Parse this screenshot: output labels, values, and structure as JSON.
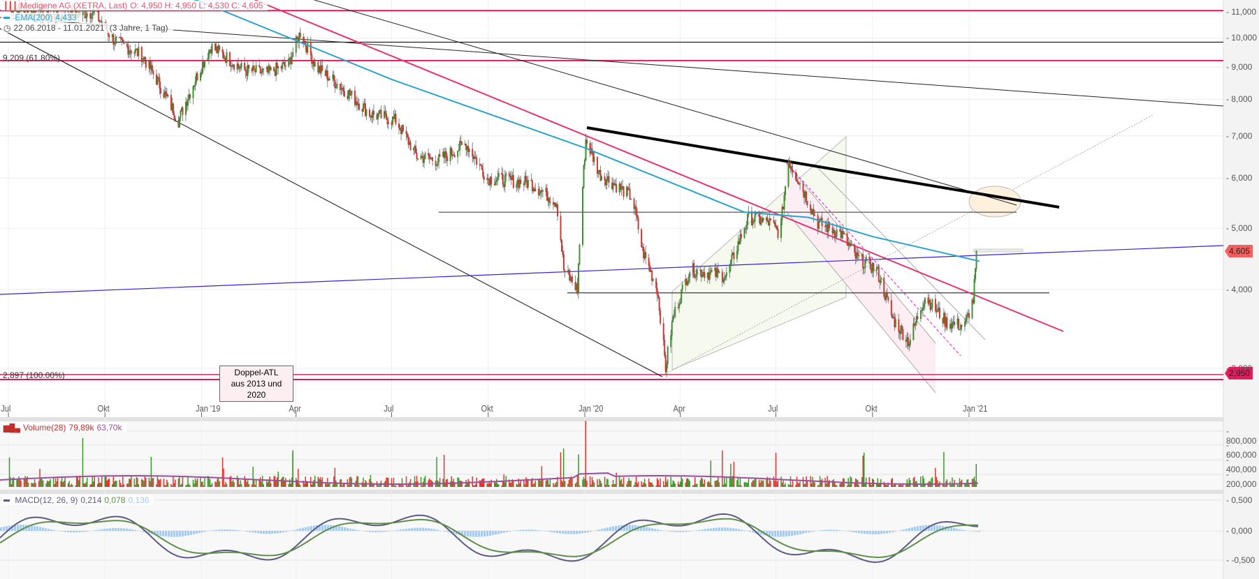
{
  "header": {
    "instrument": "Medigene AG (XETRA, Last)",
    "ohlc": {
      "O": "4,950",
      "H": "4,950",
      "L": "4,530",
      "C": "4,605"
    },
    "ohlc_text": "O: 4,950  H: 4,950  L: 4,530  C: 4,605",
    "ema_label": "EMA(200)",
    "ema_value": "4,433",
    "period": "22.06.2018 - 11.01.2021",
    "period_detail": "(3 Jahre, 1 Tag)"
  },
  "volume_legend": {
    "label": "Volume(28)",
    "value1": "79,89k",
    "value2": "63,70k"
  },
  "macd_legend": {
    "label": "MACD(12, 26, 9)",
    "macd": "0,214",
    "signal": "0,078",
    "hist": "0,136"
  },
  "fib_labels": [
    {
      "text": "9,209 (61.80%)",
      "price": 9209
    },
    {
      "text": "2,897 (100.00%)",
      "price": 2897
    }
  ],
  "annotation": {
    "line1": "Doppel-ATL",
    "line2": "aus 2013 und 2020"
  },
  "badges": {
    "last_price": "4,605",
    "support": "2,950"
  },
  "colors": {
    "up": "#3a9a28",
    "down": "#e8332e",
    "ema": "#2aa3cc",
    "fib": "#e0195f",
    "trend_pink": "#e8336f",
    "blue_line": "#3a1fd6",
    "vol_ma": "#9b4f9b",
    "macd": "#5c5a85",
    "signal": "#5e8f4a",
    "hist": "#a9c8ea",
    "last_badge": "#f26060",
    "support_badge": "#e8195f"
  },
  "chart_data": {
    "type": "candlestick",
    "title": "Medigene AG (XETRA, Last)",
    "range": "22.06.2018 - 11.01.2021",
    "interval": "1 Tag",
    "y_scale": "log",
    "y_ticks": [
      "11,000",
      "10,000",
      "9,000",
      "8,000",
      "7,000",
      "6,000",
      "5,000",
      "4,000",
      "3,000"
    ],
    "x_ticks": [
      "Jul",
      "Okt",
      "Jan '19",
      "Apr",
      "Jul",
      "Okt",
      "Jan '20",
      "Apr",
      "Jul",
      "Okt",
      "Jan '21"
    ],
    "last": {
      "open": 4.95,
      "high": 4.95,
      "low": 4.53,
      "close": 4.605
    },
    "ema200_last": 4.433,
    "price_path": [
      [
        "2018-07-01",
        11.2
      ],
      [
        "2018-08-15",
        10.8
      ],
      [
        "2018-09-20",
        11.0
      ],
      [
        "2018-10-10",
        9.9
      ],
      [
        "2018-11-05",
        9.4
      ],
      [
        "2018-12-10",
        7.4
      ],
      [
        "2019-01-10",
        9.7
      ],
      [
        "2019-02-10",
        8.9
      ],
      [
        "2019-03-05",
        8.8
      ],
      [
        "2019-03-25",
        9.1
      ],
      [
        "2019-04-05",
        10.2
      ],
      [
        "2019-04-20",
        9.0
      ],
      [
        "2019-05-20",
        8.2
      ],
      [
        "2019-06-10",
        7.6
      ],
      [
        "2019-07-05",
        7.4
      ],
      [
        "2019-07-25",
        6.5
      ],
      [
        "2019-08-15",
        6.4
      ],
      [
        "2019-09-10",
        6.8
      ],
      [
        "2019-09-30",
        6.0
      ],
      [
        "2019-11-10",
        5.9
      ],
      [
        "2019-12-05",
        5.5
      ],
      [
        "2019-12-12",
        4.3
      ],
      [
        "2019-12-25",
        4.0
      ],
      [
        "2020-01-02",
        6.9
      ],
      [
        "2020-01-15",
        6.1
      ],
      [
        "2020-02-15",
        5.6
      ],
      [
        "2020-02-25",
        4.6
      ],
      [
        "2020-03-10",
        4.0
      ],
      [
        "2020-03-18",
        3.0
      ],
      [
        "2020-03-25",
        3.6
      ],
      [
        "2020-04-10",
        4.3
      ],
      [
        "2020-05-15",
        4.2
      ],
      [
        "2020-06-05",
        5.2
      ],
      [
        "2020-06-25",
        5.1
      ],
      [
        "2020-07-05",
        4.9
      ],
      [
        "2020-07-13",
        6.4
      ],
      [
        "2020-08-10",
        5.1
      ],
      [
        "2020-09-01",
        4.9
      ],
      [
        "2020-09-15",
        4.5
      ],
      [
        "2020-10-05",
        4.3
      ],
      [
        "2020-10-20",
        3.6
      ],
      [
        "2020-11-05",
        3.3
      ],
      [
        "2020-11-20",
        3.9
      ],
      [
        "2020-12-10",
        3.55
      ],
      [
        "2020-12-28",
        3.5
      ],
      [
        "2021-01-05",
        3.85
      ],
      [
        "2021-01-08",
        4.5
      ],
      [
        "2021-01-11",
        4.605
      ]
    ],
    "ema200_path": [
      [
        "2018-07-01",
        14.5
      ],
      [
        "2019-01-01",
        11.4
      ],
      [
        "2019-07-01",
        8.6
      ],
      [
        "2020-01-01",
        6.7
      ],
      [
        "2020-06-01",
        5.3
      ],
      [
        "2020-08-01",
        5.2
      ],
      [
        "2020-10-01",
        4.85
      ],
      [
        "2021-01-11",
        4.433
      ]
    ],
    "volume": {
      "y_ticks": [
        "800,000",
        "600,000",
        "400,000",
        "200,000"
      ],
      "ma_period": 28,
      "last": "79,89k",
      "ma_last": "63,70k"
    },
    "macd": {
      "y_ticks": [
        "0,500",
        "0,000",
        "-0,500"
      ],
      "params": [
        12,
        26,
        9
      ],
      "last_macd": 0.214,
      "last_signal": 0.078,
      "last_hist": 0.136
    },
    "horizontal_levels": [
      {
        "price": 11.05,
        "color": "fib"
      },
      {
        "price": 9.85,
        "color": "black"
      },
      {
        "price": 9.209,
        "color": "fib",
        "label": "9,209 (61.80%)"
      },
      {
        "price": 5.3,
        "color": "black"
      },
      {
        "price": 3.95,
        "color": "black"
      },
      {
        "price": 2.95,
        "color": "fib"
      },
      {
        "price": 2.897,
        "color": "fib",
        "label": "2,897 (100.00%)"
      }
    ],
    "annotations": [
      "Doppel-ATL aus 2013 und 2020"
    ]
  }
}
